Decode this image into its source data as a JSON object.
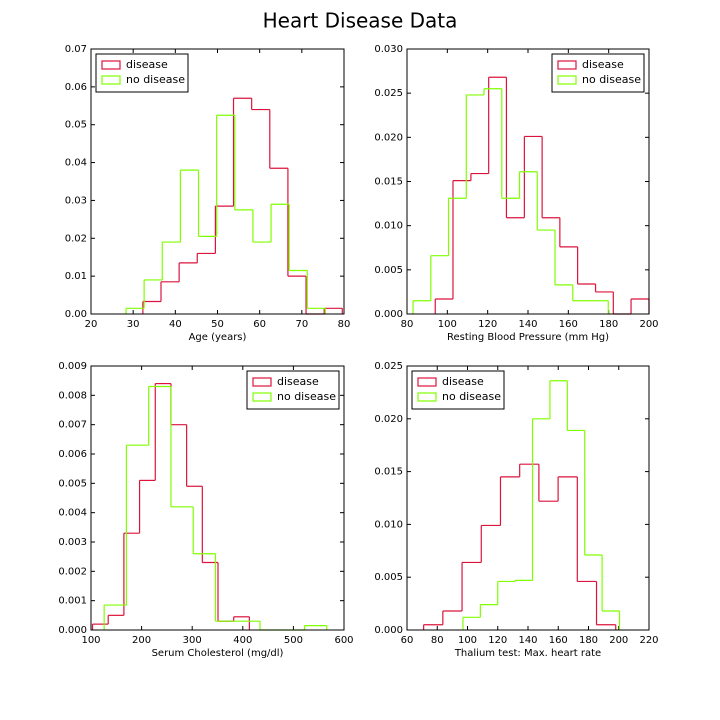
{
  "title": "Heart Disease Data",
  "chart_data": [
    {
      "type": "histogram",
      "xlabel": "Age (years)",
      "legend": "upper left",
      "xlim": [
        20,
        80
      ],
      "xticks": [
        20,
        30,
        40,
        50,
        60,
        70,
        80
      ],
      "ylim": [
        0,
        0.07
      ],
      "yticks": [
        {
          "value": 0,
          "label": "0.00"
        },
        {
          "value": 0.01,
          "label": "0.01"
        },
        {
          "value": 0.02,
          "label": "0.02"
        },
        {
          "value": 0.03,
          "label": "0.03"
        },
        {
          "value": 0.04,
          "label": "0.04"
        },
        {
          "value": 0.05,
          "label": "0.05"
        },
        {
          "value": 0.06,
          "label": "0.06"
        },
        {
          "value": 0.07,
          "label": "0.07"
        }
      ],
      "series": [
        {
          "name": "disease",
          "color": "#dc143c",
          "bins": [
            32.3,
            36.6,
            40.9,
            45.2,
            49.5,
            53.8,
            58.1,
            62.4,
            66.7,
            71,
            75.3,
            79.6
          ],
          "values": [
            0.0033,
            0.0085,
            0.0135,
            0.016,
            0.0285,
            0.057,
            0.054,
            0.0385,
            0.01,
            0,
            0.0015
          ]
        },
        {
          "name": "no disease",
          "color": "#7fff00",
          "bins": [
            28.3,
            32.6,
            36.9,
            41.2,
            45.5,
            49.8,
            54.1,
            58.4,
            62.7,
            67,
            71.3,
            75.6
          ],
          "values": [
            0.0015,
            0.009,
            0.019,
            0.038,
            0.0205,
            0.0525,
            0.0275,
            0.019,
            0.029,
            0.0115,
            0.0015
          ]
        }
      ]
    },
    {
      "type": "histogram",
      "xlabel": "Resting Blood Pressure (mm Hg)",
      "legend": "upper right",
      "xlim": [
        80,
        200
      ],
      "xticks": [
        80,
        100,
        120,
        140,
        160,
        180,
        200
      ],
      "ylim": [
        0,
        0.03
      ],
      "yticks": [
        {
          "value": 0,
          "label": "0.000"
        },
        {
          "value": 0.005,
          "label": "0.005"
        },
        {
          "value": 0.01,
          "label": "0.010"
        },
        {
          "value": 0.015,
          "label": "0.015"
        },
        {
          "value": 0.02,
          "label": "0.020"
        },
        {
          "value": 0.025,
          "label": "0.025"
        },
        {
          "value": 0.03,
          "label": "0.030"
        }
      ],
      "series": [
        {
          "name": "disease",
          "color": "#dc143c",
          "bins": [
            94,
            102.8,
            111.7,
            120.5,
            129.3,
            138.2,
            147,
            155.8,
            164.6,
            173.5,
            182.3,
            191.1,
            200
          ],
          "values": [
            0.0017,
            0.0151,
            0.0159,
            0.0268,
            0.0109,
            0.0201,
            0.0109,
            0.0076,
            0.0034,
            0.0025,
            0,
            0.0017
          ]
        },
        {
          "name": "no disease",
          "color": "#7fff00",
          "bins": [
            83,
            91.8,
            100.6,
            109.4,
            118.2,
            127,
            135.8,
            144.6,
            153.4,
            162.2,
            171,
            179.8
          ],
          "values": [
            0.0015,
            0.0066,
            0.0131,
            0.0248,
            0.0255,
            0.0131,
            0.0161,
            0.0095,
            0.0033,
            0.0015,
            0.0015
          ]
        }
      ]
    },
    {
      "type": "histogram",
      "xlabel": "Serum Cholesterol (mg/dl)",
      "legend": "upper right",
      "xlim": [
        100,
        600
      ],
      "xticks": [
        100,
        200,
        300,
        400,
        500,
        600
      ],
      "ylim": [
        0,
        0.009
      ],
      "yticks": [
        {
          "value": 0,
          "label": "0.000"
        },
        {
          "value": 0.001,
          "label": "0.001"
        },
        {
          "value": 0.002,
          "label": "0.002"
        },
        {
          "value": 0.003,
          "label": "0.003"
        },
        {
          "value": 0.004,
          "label": "0.004"
        },
        {
          "value": 0.005,
          "label": "0.005"
        },
        {
          "value": 0.006,
          "label": "0.006"
        },
        {
          "value": 0.007,
          "label": "0.007"
        },
        {
          "value": 0.008,
          "label": "0.008"
        },
        {
          "value": 0.009,
          "label": "0.009"
        }
      ],
      "series": [
        {
          "name": "disease",
          "color": "#dc143c",
          "bins": [
            103,
            134,
            165,
            196,
            227,
            258,
            289,
            320,
            351,
            382,
            413
          ],
          "values": [
            0.0002,
            0.0005,
            0.0033,
            0.0051,
            0.0084,
            0.007,
            0.0049,
            0.0023,
            0.0003,
            0.00045
          ]
        },
        {
          "name": "no disease",
          "color": "#7fff00",
          "bins": [
            126,
            170,
            214,
            258,
            302,
            346,
            390,
            434,
            478,
            522,
            566
          ],
          "values": [
            0.00085,
            0.0063,
            0.0083,
            0.0042,
            0.0026,
            0.0003,
            0.0003,
            0,
            0,
            0.00015
          ]
        }
      ]
    },
    {
      "type": "histogram",
      "xlabel": "Thalium test: Max. heart rate",
      "legend": "upper left",
      "xlim": [
        60,
        220
      ],
      "xticks": [
        60,
        80,
        100,
        120,
        140,
        160,
        180,
        200,
        220
      ],
      "ylim": [
        0,
        0.025
      ],
      "yticks": [
        {
          "value": 0,
          "label": "0.000"
        },
        {
          "value": 0.005,
          "label": "0.005"
        },
        {
          "value": 0.01,
          "label": "0.010"
        },
        {
          "value": 0.015,
          "label": "0.015"
        },
        {
          "value": 0.02,
          "label": "0.020"
        },
        {
          "value": 0.025,
          "label": "0.025"
        }
      ],
      "series": [
        {
          "name": "disease",
          "color": "#dc143c",
          "bins": [
            71,
            83.7,
            96.4,
            109.1,
            121.8,
            134.5,
            147.2,
            159.9,
            172.6,
            185.3,
            198
          ],
          "values": [
            0.0005,
            0.0018,
            0.0064,
            0.0099,
            0.0145,
            0.0157,
            0.0122,
            0.0145,
            0.0046,
            0.0005
          ]
        },
        {
          "name": "no disease",
          "color": "#7fff00",
          "bins": [
            97,
            108.5,
            120,
            131.5,
            143,
            154.5,
            166,
            177.5,
            189,
            200.5
          ],
          "values": [
            0.0012,
            0.0024,
            0.0046,
            0.0047,
            0.02,
            0.0236,
            0.0189,
            0.0071,
            0.0018
          ]
        }
      ]
    }
  ]
}
